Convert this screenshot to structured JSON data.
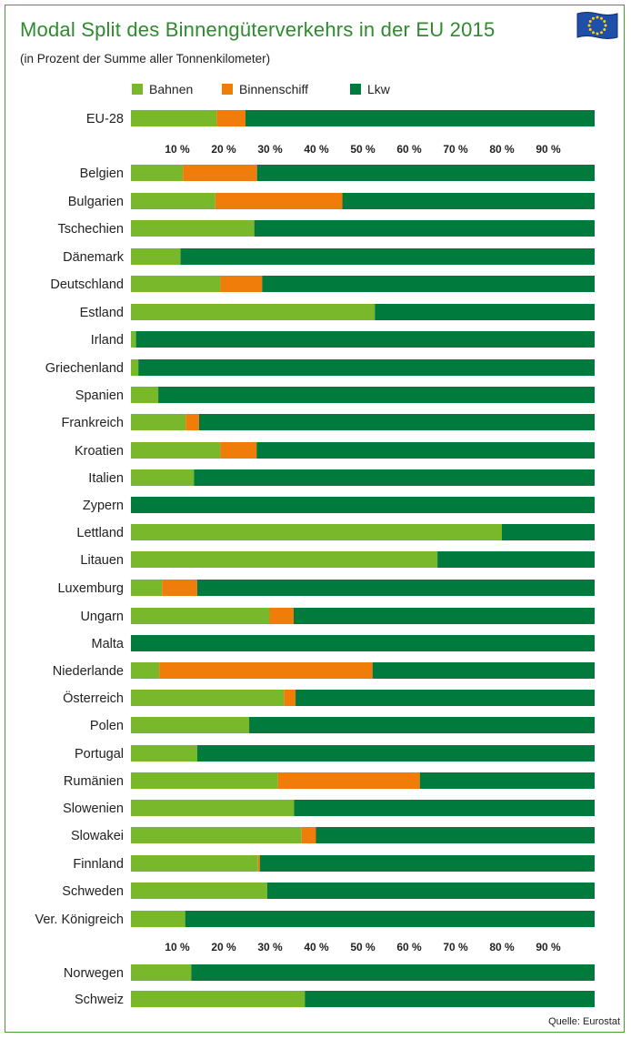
{
  "title": "Modal Split des Binnengüterverkehrs in der EU 2015",
  "subtitle": "(in Prozent der Summe aller Tonnenkilometer)",
  "source": "Quelle: Eurostat",
  "colors": {
    "bahnen": "#78b82a",
    "binnenschiff": "#f07d0a",
    "lkw": "#007a3d",
    "title": "#2e8b2e",
    "flag": "#1f4fa8",
    "stars": "#ffd200"
  },
  "icons": {
    "flag": "eu-flag-icon"
  },
  "chart_data": {
    "type": "bar",
    "orientation": "horizontal",
    "stacked": true,
    "title": "Modal Split des Binnengüterverkehrs in der EU 2015",
    "subtitle": "(in Prozent der Summe aller Tonnenkilometer)",
    "xlim": [
      0,
      100
    ],
    "tick_labels": [
      "10 %",
      "20 %",
      "30 %",
      "40 %",
      "50 %",
      "60 %",
      "70 %",
      "80 %",
      "90 %"
    ],
    "grid": false,
    "legend_position": "top",
    "categories": [
      "EU-28",
      "Belgien",
      "Bulgarien",
      "Tschechien",
      "Dänemark",
      "Deutschland",
      "Estland",
      "Irland",
      "Griechenland",
      "Spanien",
      "Frankreich",
      "Kroatien",
      "Italien",
      "Zypern",
      "Lettland",
      "Litauen",
      "Luxemburg",
      "Ungarn",
      "Malta",
      "Niederlande",
      "Österreich",
      "Polen",
      "Portugal",
      "Rumänien",
      "Slowenien",
      "Slowakei",
      "Finnland",
      "Schweden",
      "Ver. Königreich",
      "Norwegen",
      "Schweiz"
    ],
    "series": [
      {
        "name": "Bahnen",
        "values": [
          18.5,
          11.2,
          18.2,
          26.6,
          10.7,
          19.3,
          52.6,
          1.1,
          1.6,
          5.9,
          11.8,
          19.3,
          13.6,
          0,
          80.0,
          66.1,
          6.7,
          29.9,
          0,
          6.1,
          33.0,
          25.5,
          14.3,
          31.7,
          35.2,
          36.8,
          27.4,
          29.4,
          11.7,
          13.0,
          37.5
        ]
      },
      {
        "name": "Binnenschiff",
        "values": [
          6.2,
          16.0,
          27.4,
          0,
          0,
          9.0,
          0,
          0,
          0,
          0,
          2.9,
          7.8,
          0,
          0,
          0,
          0,
          7.6,
          5.2,
          0,
          46.0,
          2.5,
          0,
          0,
          30.6,
          0,
          3.1,
          0.4,
          0,
          0,
          0,
          0
        ]
      },
      {
        "name": "Lkw",
        "values": [
          75.3,
          72.8,
          54.4,
          73.4,
          89.3,
          71.7,
          47.4,
          98.9,
          98.4,
          94.1,
          85.3,
          72.9,
          86.4,
          100,
          20.0,
          33.9,
          85.7,
          64.9,
          100,
          47.9,
          64.5,
          74.5,
          85.7,
          37.7,
          64.8,
          60.1,
          72.2,
          70.6,
          88.3,
          87.0,
          62.5
        ]
      }
    ]
  }
}
